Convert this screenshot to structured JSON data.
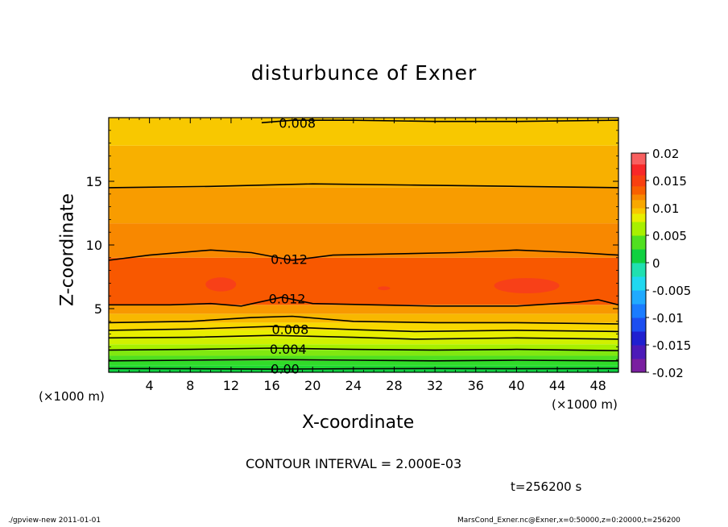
{
  "chart_data": {
    "type": "heatmap",
    "title": "disturbunce of Exner",
    "xlabel": "X-coordinate",
    "ylabel": "Z-coordinate",
    "x_unit_left": "(×1000 m)",
    "x_unit_right": "(×1000 m)",
    "xlim": [
      0,
      50
    ],
    "ylim": [
      0,
      20
    ],
    "x_ticks": [
      4,
      8,
      12,
      16,
      20,
      24,
      28,
      32,
      36,
      40,
      44,
      48
    ],
    "y_ticks": [
      5,
      10,
      15
    ],
    "colorbar": {
      "min": -0.02,
      "max": 0.02,
      "tick_labels": [
        "0.02",
        "0.015",
        "0.01",
        "0.005",
        "0",
        "-0.005",
        "-0.01",
        "-0.015",
        "-0.02"
      ],
      "tick_values": [
        0.02,
        0.015,
        0.01,
        0.005,
        0,
        -0.005,
        -0.01,
        -0.015,
        -0.02
      ],
      "levels": [
        {
          "value": -0.02,
          "color": "#7a1fa0"
        },
        {
          "value": -0.0175,
          "color": "#4c1ab8"
        },
        {
          "value": -0.015,
          "color": "#2020d0"
        },
        {
          "value": -0.0125,
          "color": "#1c4ef0"
        },
        {
          "value": -0.01,
          "color": "#1a7cff"
        },
        {
          "value": -0.0075,
          "color": "#20aaff"
        },
        {
          "value": -0.005,
          "color": "#20d8f0"
        },
        {
          "value": -0.0025,
          "color": "#20e0b0"
        },
        {
          "value": 0.0,
          "color": "#10d040"
        },
        {
          "value": 0.0025,
          "color": "#50e020"
        },
        {
          "value": 0.005,
          "color": "#a8f000"
        },
        {
          "value": 0.0075,
          "color": "#e8ee00"
        },
        {
          "value": 0.009,
          "color": "#f8c800"
        },
        {
          "value": 0.01,
          "color": "#f8a800"
        },
        {
          "value": 0.0115,
          "color": "#f88800"
        },
        {
          "value": 0.0125,
          "color": "#f86000"
        },
        {
          "value": 0.014,
          "color": "#f84010"
        },
        {
          "value": 0.016,
          "color": "#f82828"
        },
        {
          "value": 0.018,
          "color": "#f86060"
        },
        {
          "value": 0.02,
          "color": "#f89898"
        }
      ]
    },
    "bands": [
      {
        "z0": 0.0,
        "z1": 0.25,
        "color": "#10d040"
      },
      {
        "z0": 0.25,
        "z1": 0.55,
        "color": "#20d830"
      },
      {
        "z0": 0.55,
        "z1": 0.9,
        "color": "#30dc28"
      },
      {
        "z0": 0.9,
        "z1": 1.3,
        "color": "#50e020"
      },
      {
        "z0": 1.3,
        "z1": 1.75,
        "color": "#80e810"
      },
      {
        "z0": 1.75,
        "z1": 2.2,
        "color": "#a8f000"
      },
      {
        "z0": 2.2,
        "z1": 2.7,
        "color": "#d0f000"
      },
      {
        "z0": 2.7,
        "z1": 3.3,
        "color": "#e8ee00"
      },
      {
        "z0": 3.3,
        "z1": 3.9,
        "color": "#f8d800"
      },
      {
        "z0": 3.9,
        "z1": 4.6,
        "color": "#f8b800"
      },
      {
        "z0": 4.6,
        "z1": 5.3,
        "color": "#f89800"
      },
      {
        "z0": 5.3,
        "z1": 9.0,
        "color": "#f85800"
      },
      {
        "z0": 9.0,
        "z1": 11.7,
        "color": "#f88800"
      },
      {
        "z0": 11.7,
        "z1": 14.5,
        "color": "#f89c00"
      },
      {
        "z0": 14.5,
        "z1": 17.8,
        "color": "#f8b000"
      },
      {
        "z0": 17.8,
        "z1": 20.0,
        "color": "#f8c800"
      }
    ],
    "hotspots": [
      {
        "x": 11,
        "z": 6.9,
        "rx": 1.5,
        "rz": 0.55,
        "color": "#f84018"
      },
      {
        "x": 41,
        "z": 6.8,
        "rx": 3.2,
        "rz": 0.6,
        "color": "#f84018"
      },
      {
        "x": 27,
        "z": 6.6,
        "rx": 0.6,
        "rz": 0.15,
        "color": "#f84018"
      }
    ],
    "contours": [
      {
        "points": [
          [
            0,
            0.3
          ],
          [
            8,
            0.28
          ],
          [
            16,
            0.25
          ],
          [
            24,
            0.28
          ],
          [
            32,
            0.3
          ],
          [
            40,
            0.28
          ],
          [
            50,
            0.3
          ]
        ],
        "label": "0.00",
        "label_x": 17.3,
        "label_z": 0.3
      },
      {
        "points": [
          [
            0,
            0.9
          ],
          [
            8,
            0.95
          ],
          [
            16,
            1.0
          ],
          [
            24,
            0.95
          ],
          [
            32,
            0.9
          ],
          [
            40,
            0.95
          ],
          [
            50,
            0.9
          ]
        ]
      },
      {
        "points": [
          [
            0,
            1.75
          ],
          [
            8,
            1.8
          ],
          [
            16,
            1.9
          ],
          [
            24,
            1.8
          ],
          [
            32,
            1.75
          ],
          [
            40,
            1.8
          ],
          [
            50,
            1.7
          ]
        ],
        "label": "0.004",
        "label_x": 17.6,
        "label_z": 1.85
      },
      {
        "points": [
          [
            0,
            2.7
          ],
          [
            8,
            2.75
          ],
          [
            16,
            2.9
          ],
          [
            24,
            2.75
          ],
          [
            30,
            2.6
          ],
          [
            40,
            2.7
          ],
          [
            50,
            2.6
          ]
        ]
      },
      {
        "points": [
          [
            0,
            3.3
          ],
          [
            8,
            3.4
          ],
          [
            16,
            3.6
          ],
          [
            24,
            3.35
          ],
          [
            30,
            3.2
          ],
          [
            40,
            3.3
          ],
          [
            50,
            3.2
          ]
        ],
        "label": "0.008",
        "label_x": 17.8,
        "label_z": 3.4
      },
      {
        "points": [
          [
            0,
            3.9
          ],
          [
            8,
            4.0
          ],
          [
            14,
            4.3
          ],
          [
            18,
            4.4
          ],
          [
            24,
            4.0
          ],
          [
            32,
            3.9
          ],
          [
            40,
            3.9
          ],
          [
            50,
            3.8
          ]
        ]
      },
      {
        "points": [
          [
            0,
            5.3
          ],
          [
            6,
            5.3
          ],
          [
            10,
            5.4
          ],
          [
            13,
            5.2
          ],
          [
            17,
            5.9
          ],
          [
            20,
            5.4
          ],
          [
            26,
            5.3
          ],
          [
            32,
            5.2
          ],
          [
            40,
            5.2
          ],
          [
            46,
            5.5
          ],
          [
            48,
            5.7
          ],
          [
            50,
            5.3
          ]
        ],
        "label": "0.012",
        "label_x": 17.5,
        "label_z": 5.8
      },
      {
        "points": [
          [
            0,
            8.8
          ],
          [
            4,
            9.2
          ],
          [
            10,
            9.6
          ],
          [
            14,
            9.4
          ],
          [
            18,
            8.8
          ],
          [
            22,
            9.2
          ],
          [
            28,
            9.3
          ],
          [
            34,
            9.4
          ],
          [
            40,
            9.6
          ],
          [
            46,
            9.4
          ],
          [
            50,
            9.2
          ]
        ],
        "label": "0.012",
        "label_x": 17.7,
        "label_z": 8.9
      },
      {
        "points": [
          [
            0,
            14.5
          ],
          [
            10,
            14.6
          ],
          [
            20,
            14.8
          ],
          [
            30,
            14.7
          ],
          [
            40,
            14.6
          ],
          [
            50,
            14.5
          ]
        ]
      },
      {
        "points": [
          [
            15,
            19.6
          ],
          [
            18,
            19.8
          ],
          [
            24,
            19.8
          ],
          [
            32,
            19.7
          ],
          [
            40,
            19.7
          ],
          [
            50,
            19.8
          ]
        ],
        "label": "0.008",
        "label_x": 18.5,
        "label_z": 19.6
      }
    ]
  },
  "footer": {
    "interval": "CONTOUR INTERVAL = 2.000E-03",
    "time": "t=256200 s",
    "program": "./gpview-new  2011-01-01",
    "source": "MarsCond_Exner.nc@Exner,x=0:50000,z=0:20000,t=256200"
  }
}
